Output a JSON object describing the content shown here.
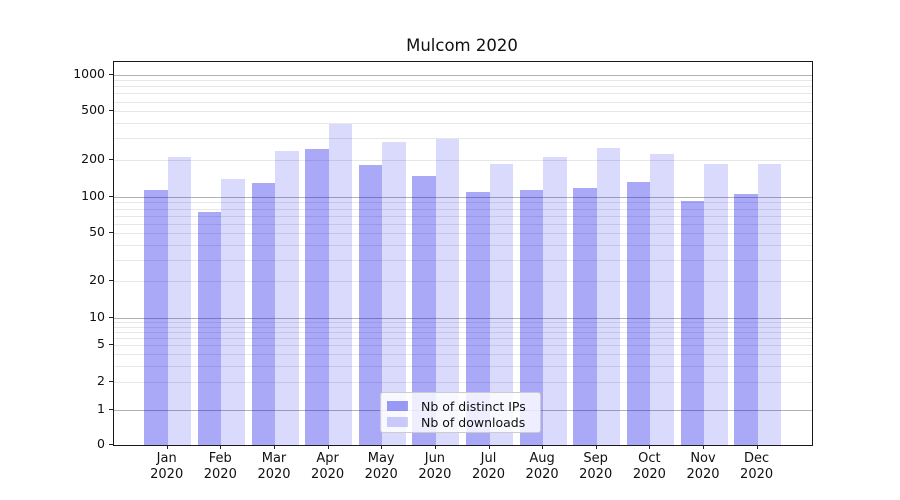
{
  "title": "Mulcom 2020",
  "chart_data": {
    "type": "bar",
    "title": "Mulcom 2020",
    "categories": [
      "Jan",
      "Feb",
      "Mar",
      "Apr",
      "May",
      "Jun",
      "Jul",
      "Aug",
      "Sep",
      "Oct",
      "Nov",
      "Dec"
    ],
    "category_year": "2020",
    "series": [
      {
        "name": "Nb of distinct IPs",
        "color": "#0808eb",
        "alpha": 0.35,
        "values": [
          113,
          75,
          130,
          247,
          181,
          149,
          110,
          113,
          118,
          133,
          92,
          106
        ]
      },
      {
        "name": "Nb of downloads",
        "color": "#0808eb",
        "alpha": 0.15,
        "values": [
          210,
          140,
          235,
          395,
          282,
          296,
          186,
          210,
          249,
          222,
          184,
          187
        ]
      }
    ],
    "xlabel": "",
    "ylabel": "",
    "yscale": "symlog",
    "yticks": [
      0,
      1,
      2,
      5,
      10,
      20,
      50,
      100,
      200,
      500,
      1000
    ],
    "ylim": [
      0,
      1250
    ],
    "grid": true,
    "legend_position": "lower center"
  }
}
